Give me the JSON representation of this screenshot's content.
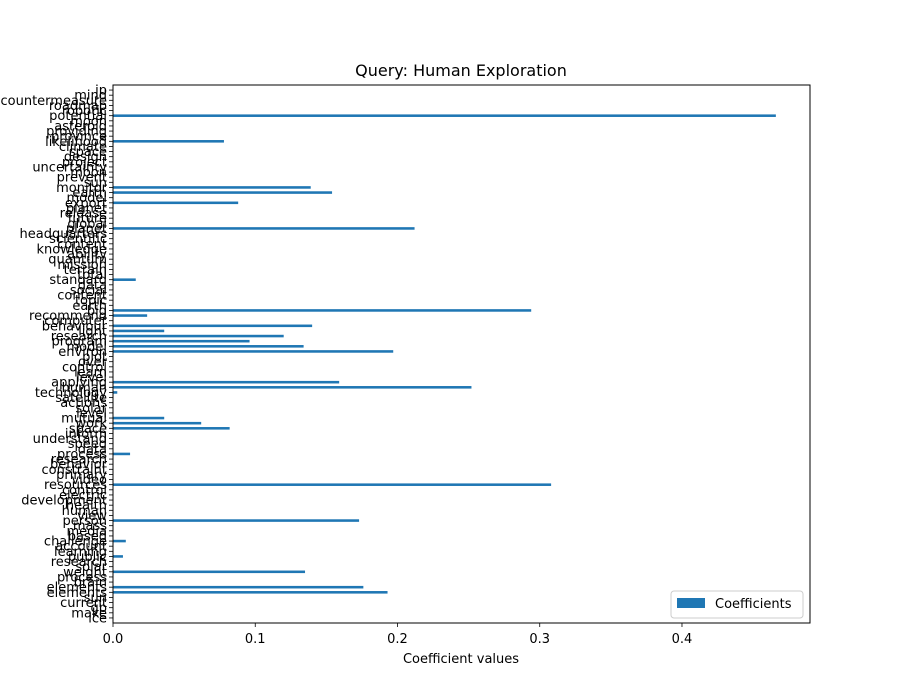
{
  "chart_data": {
    "type": "bar",
    "orientation": "horizontal",
    "title": "Query: Human Exploration",
    "xlabel": "Coefficient values",
    "ylabel": "",
    "xlim": [
      0,
      0.49
    ],
    "xticks": [
      0.0,
      0.1,
      0.2,
      0.3,
      0.4
    ],
    "xtick_labels": [
      "0.0",
      "0.1",
      "0.2",
      "0.3",
      "0.4"
    ],
    "bar_color": "#1f77b4",
    "legend": {
      "position": "lower-right",
      "entries": [
        "Coefficients"
      ]
    },
    "categories": [
      "ice",
      "make",
      "gp",
      "current",
      "sun",
      "elements",
      "elements2",
      "brain",
      "process",
      "weight",
      "solar",
      "research",
      "public",
      "learning",
      "account",
      "challenge",
      "based",
      "media",
      "mass",
      "person",
      "view",
      "human",
      "health",
      "development",
      "electric",
      "control",
      "resources",
      "video",
      "primary",
      "constraint",
      "behavior",
      "research2",
      "process2",
      "data",
      "speed",
      "understand",
      "inform",
      "space",
      "work",
      "mutual",
      "level",
      "solar2",
      "actions",
      "satellite",
      "technology",
      "human2",
      "applying",
      "level2",
      "learn",
      "control2",
      "over",
      "plot",
      "environ",
      "model",
      "program",
      "research3",
      "light",
      "behaviour",
      "computer",
      "recommend",
      "big",
      "earth",
      "topic",
      "content",
      "social",
      "data2",
      "standard",
      "total",
      "terrain",
      "mission",
      "quantum",
      "ability",
      "knowledge",
      "content2",
      "scientific",
      "headquarters",
      "planet",
      "global",
      "future",
      "release",
      "planet2",
      "export",
      "model2",
      "earth2",
      "monitor",
      "sun2",
      "prevent",
      "moon",
      "uncertainty",
      "project",
      "design",
      "space2",
      "climate",
      "likelihood",
      "province",
      "providing",
      "asteroid",
      "moon2",
      "potential",
      "robotic",
      "roadmap",
      "countermeasure",
      "mind",
      "jp"
    ],
    "values": [
      0,
      0,
      0,
      0,
      0,
      0.193,
      0.176,
      0,
      0,
      0.135,
      0,
      0,
      0.007,
      0,
      0,
      0.009,
      0,
      0,
      0,
      0.173,
      0,
      0,
      0,
      0,
      0,
      0,
      0.308,
      0,
      0,
      0,
      0,
      0,
      0.012,
      0,
      0,
      0,
      0,
      0.082,
      0.062,
      0.036,
      0,
      0,
      0,
      0,
      0.003,
      0.252,
      0.159,
      0,
      0,
      0,
      0,
      0,
      0.197,
      0.134,
      0.096,
      0.12,
      0.036,
      0.14,
      0,
      0.024,
      0.294,
      0,
      0,
      0,
      0,
      0,
      0.016,
      0,
      0,
      0,
      0,
      0,
      0,
      0,
      0,
      0,
      0.212,
      0,
      0,
      0,
      0,
      0.088,
      0,
      0.154,
      0.139,
      0,
      0,
      0,
      0,
      0,
      0,
      0,
      0,
      0.078,
      0,
      0,
      0,
      0,
      0.466,
      0,
      0,
      0,
      0,
      0
    ]
  }
}
